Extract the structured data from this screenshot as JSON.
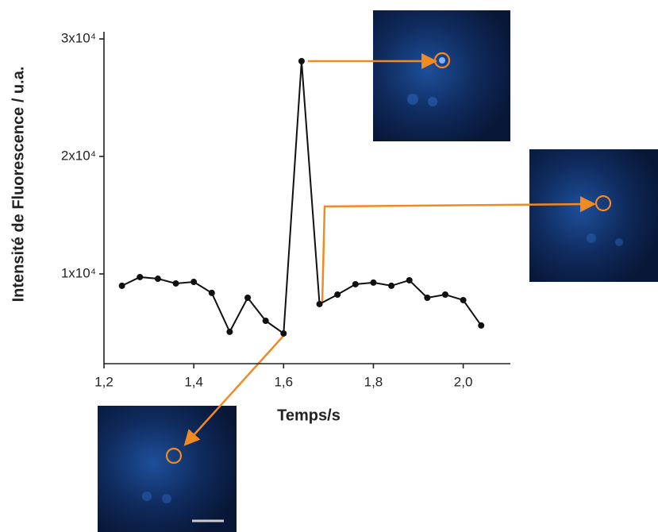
{
  "chart_data": {
    "type": "line",
    "x_label": "Temps/s",
    "y_label": "Intensité de Fluorescence / u.a.",
    "x": [
      1.24,
      1.28,
      1.32,
      1.36,
      1.4,
      1.44,
      1.48,
      1.52,
      1.56,
      1.6,
      1.64,
      1.68,
      1.72,
      1.76,
      1.8,
      1.84,
      1.88,
      1.92,
      1.96,
      2.0,
      2.04
    ],
    "values": [
      8990,
      9730,
      9590,
      9190,
      9320,
      8380,
      5070,
      7970,
      6010,
      4930,
      28110,
      7430,
      8240,
      9120,
      9260,
      8990,
      9460,
      7970,
      8240,
      7770,
      5610
    ],
    "color": "#111111",
    "xlim": [
      1.2,
      2.105
    ],
    "ylim": [
      2360,
      30610
    ],
    "xticks": [
      {
        "value": 1.2,
        "label": "1,2"
      },
      {
        "value": 1.4,
        "label": "1,4"
      },
      {
        "value": 1.6,
        "label": "1,6"
      },
      {
        "value": 1.8,
        "label": "1,8"
      },
      {
        "value": 2.0,
        "label": "2,0"
      }
    ],
    "yticks": [
      {
        "value": 10000,
        "label": "1x10⁴"
      },
      {
        "value": 20000,
        "label": "2x10⁴"
      },
      {
        "value": 30000,
        "label": "3x10⁴"
      }
    ],
    "grid": false
  }
}
